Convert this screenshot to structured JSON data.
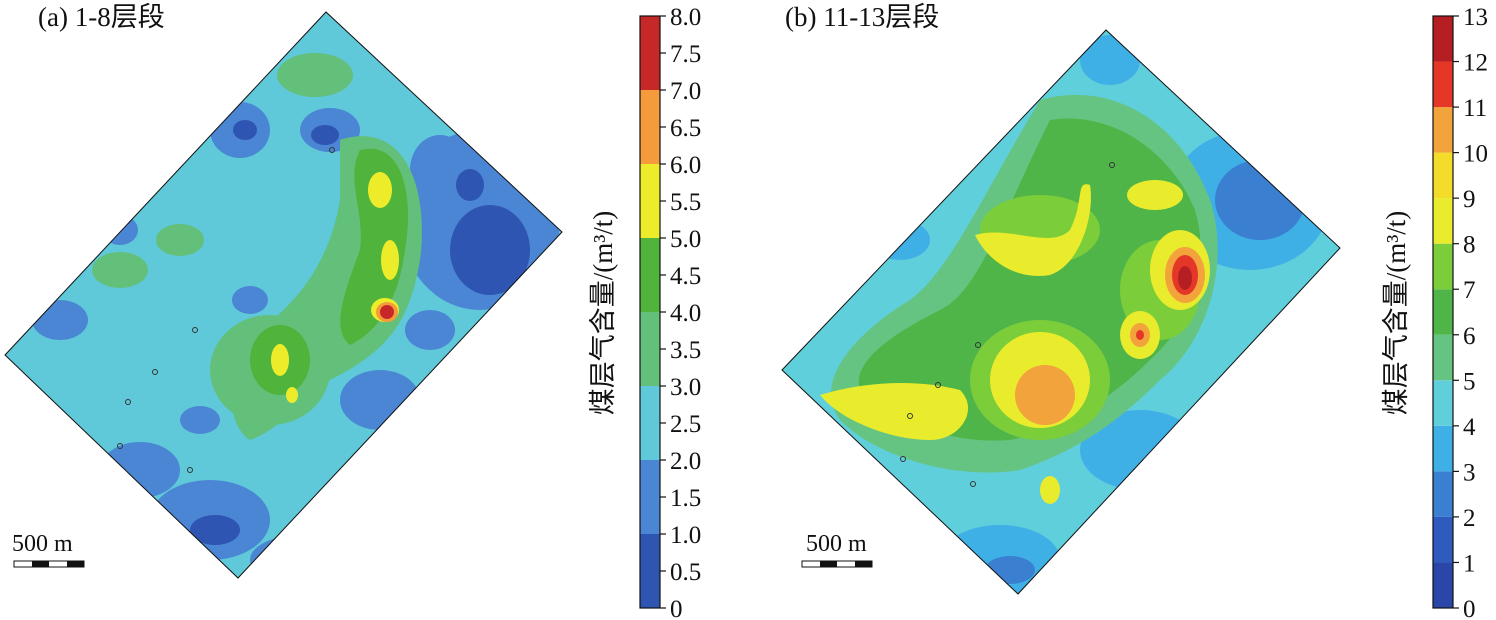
{
  "chart_data": [
    {
      "type": "heatmap",
      "title": "(a) 1-8层段",
      "colorbar_label": "煤层气含量/(m³/t)",
      "colorbar_ticks": [
        "0",
        "0.5",
        "1.0",
        "1.5",
        "2.0",
        "2.5",
        "3.0",
        "3.5",
        "4.0",
        "4.5",
        "5.0",
        "5.5",
        "6.0",
        "6.5",
        "7.0",
        "7.5",
        "8.0"
      ],
      "colorbar_range": [
        0,
        8.0
      ],
      "color_bins": [
        {
          "range": [
            0,
            1.0
          ],
          "color": "#2f55b3"
        },
        {
          "range": [
            1.0,
            2.0
          ],
          "color": "#4a86d4"
        },
        {
          "range": [
            2.0,
            3.0
          ],
          "color": "#5fc8d9"
        },
        {
          "range": [
            3.0,
            4.0
          ],
          "color": "#63c07a"
        },
        {
          "range": [
            4.0,
            5.0
          ],
          "color": "#4fb33c"
        },
        {
          "range": [
            5.0,
            6.0
          ],
          "color": "#ecec2a"
        },
        {
          "range": [
            6.0,
            7.0
          ],
          "color": "#f59b3c"
        },
        {
          "range": [
            7.0,
            8.0
          ],
          "color": "#c62828"
        }
      ],
      "scale_bar": "500 m",
      "dominant_value_range": [
        2.0,
        3.0
      ],
      "max_region_value": [
        7.0,
        8.0
      ]
    },
    {
      "type": "heatmap",
      "title": "(b) 11-13层段",
      "colorbar_label": "煤层气含量/(m³/t)",
      "colorbar_ticks": [
        "0",
        "1",
        "2",
        "3",
        "4",
        "5",
        "6",
        "7",
        "8",
        "9",
        "10",
        "11",
        "12",
        "13"
      ],
      "colorbar_range": [
        0,
        13
      ],
      "color_bins": [
        {
          "range": [
            0,
            1
          ],
          "color": "#2a47a8"
        },
        {
          "range": [
            1,
            2
          ],
          "color": "#2f5bbf"
        },
        {
          "range": [
            2,
            3
          ],
          "color": "#3a7fd0"
        },
        {
          "range": [
            3,
            4
          ],
          "color": "#3fb0e6"
        },
        {
          "range": [
            4,
            5
          ],
          "color": "#60cfdc"
        },
        {
          "range": [
            5,
            6
          ],
          "color": "#66c483"
        },
        {
          "range": [
            6,
            7
          ],
          "color": "#50b548"
        },
        {
          "range": [
            7,
            8
          ],
          "color": "#7ccd3a"
        },
        {
          "range": [
            8,
            9
          ],
          "color": "#e8ec2c"
        },
        {
          "range": [
            9,
            10
          ],
          "color": "#f4dc2a"
        },
        {
          "range": [
            10,
            11
          ],
          "color": "#f2a33c"
        },
        {
          "range": [
            11,
            12
          ],
          "color": "#e53728"
        },
        {
          "range": [
            12,
            13
          ],
          "color": "#b51f24"
        }
      ],
      "scale_bar": "500 m",
      "dominant_value_range": [
        5,
        8
      ],
      "max_region_value": [
        12,
        13
      ]
    }
  ],
  "colors": {
    "axis": "#111111",
    "map_border": "#111111"
  }
}
